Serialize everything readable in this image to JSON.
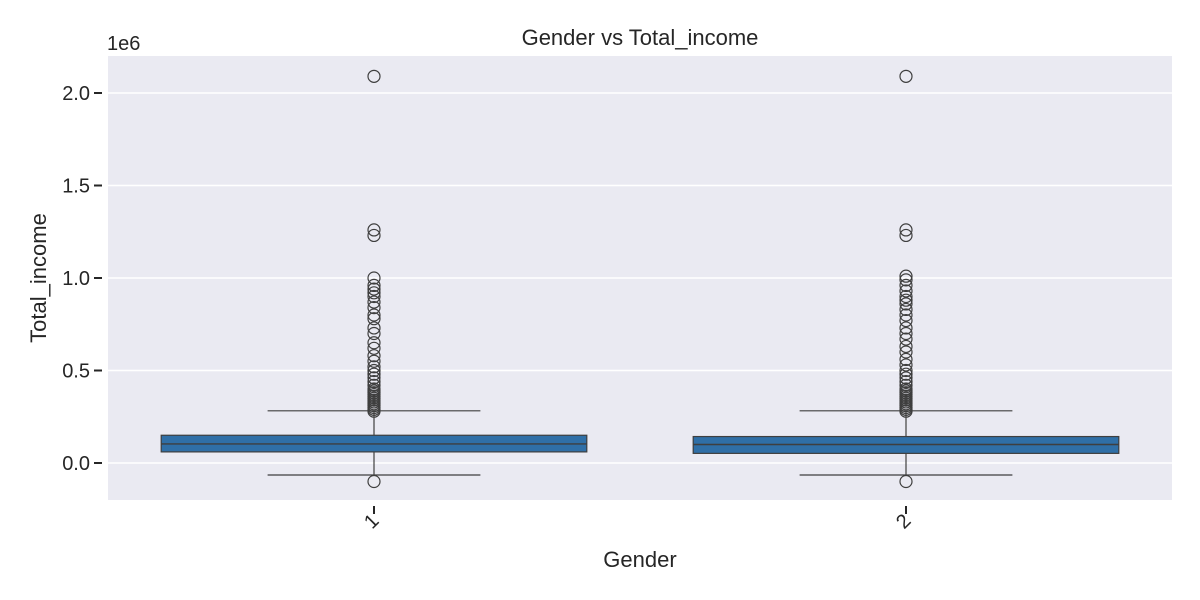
{
  "chart_data": {
    "type": "box",
    "title": "Gender vs Total_income",
    "xlabel": "Gender",
    "ylabel": "Total_income",
    "y_offset_text": "1e6",
    "ylim": [
      -0.2,
      2.2
    ],
    "yticks": [
      0.0,
      0.5,
      1.0,
      1.5,
      2.0
    ],
    "ytick_labels": [
      "0.0",
      "0.5",
      "1.0",
      "1.5",
      "2.0"
    ],
    "categories": [
      "1",
      "2"
    ],
    "box_color": "#2f6fa7",
    "background_color": "#eaeaf2",
    "grid": true,
    "series": [
      {
        "category": "1",
        "whisker_low": -0.065,
        "q1": 0.06,
        "median": 0.103,
        "q3": 0.15,
        "whisker_high": 0.282,
        "outliers": [
          -0.1,
          0.28,
          0.29,
          0.3,
          0.31,
          0.32,
          0.33,
          0.34,
          0.35,
          0.36,
          0.37,
          0.38,
          0.39,
          0.4,
          0.42,
          0.44,
          0.46,
          0.48,
          0.5,
          0.52,
          0.55,
          0.58,
          0.62,
          0.65,
          0.7,
          0.73,
          0.78,
          0.8,
          0.84,
          0.87,
          0.9,
          0.92,
          0.94,
          0.96,
          1.0,
          1.23,
          1.26,
          2.09
        ]
      },
      {
        "category": "2",
        "whisker_low": -0.065,
        "q1": 0.052,
        "median": 0.1,
        "q3": 0.143,
        "whisker_high": 0.282,
        "outliers": [
          -0.1,
          0.28,
          0.29,
          0.3,
          0.31,
          0.32,
          0.33,
          0.34,
          0.35,
          0.36,
          0.37,
          0.38,
          0.39,
          0.4,
          0.42,
          0.44,
          0.46,
          0.48,
          0.5,
          0.53,
          0.56,
          0.6,
          0.63,
          0.67,
          0.7,
          0.73,
          0.77,
          0.8,
          0.83,
          0.86,
          0.88,
          0.9,
          0.93,
          0.96,
          0.99,
          1.01,
          1.23,
          1.26,
          2.09
        ]
      }
    ]
  }
}
